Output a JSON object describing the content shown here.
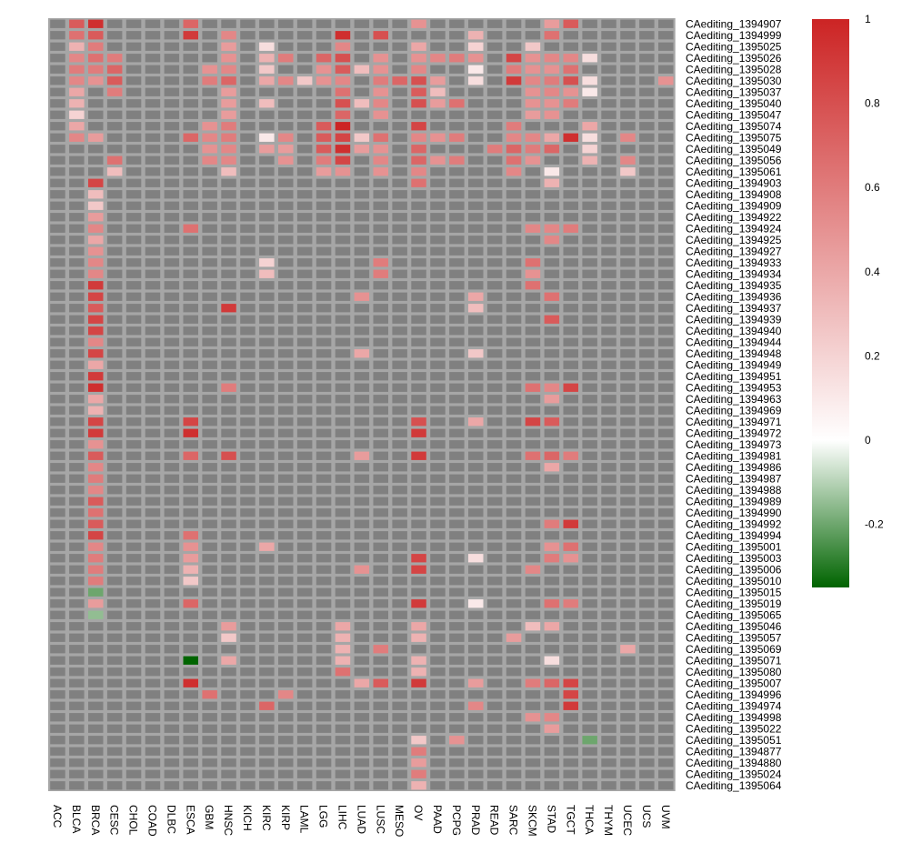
{
  "chart_data": {
    "type": "heatmap",
    "title": "",
    "xlabel": "",
    "ylabel": "",
    "na_color": "#808080",
    "colors": {
      "low": "#006400",
      "mid": "#ffffff",
      "high": "#cc2424",
      "grid": "#a6a6a6"
    },
    "value_range": [
      -0.35,
      1.0
    ],
    "legend_ticks": [
      1,
      0.8,
      0.6,
      0.4,
      0.2,
      0,
      -0.2
    ],
    "columns": [
      "ACC",
      "BLCA",
      "BRCA",
      "CESC",
      "CHOL",
      "COAD",
      "DLBC",
      "ESCA",
      "GBM",
      "HNSC",
      "KICH",
      "KIRC",
      "KIRP",
      "LAML",
      "LGG",
      "LIHC",
      "LUAD",
      "LUSC",
      "MESO",
      "OV",
      "PAAD",
      "PCPG",
      "PRAD",
      "READ",
      "SARC",
      "SKCM",
      "STAD",
      "TGCT",
      "THCA",
      "THYM",
      "UCEC",
      "UCS",
      "UVM"
    ],
    "rows": [
      {
        "name": "CAediting_1394907",
        "values": {
          "BLCA": 0.75,
          "BRCA": 0.95,
          "ESCA": 0.7,
          "OV": 0.5,
          "STAD": 0.45,
          "TGCT": 0.75
        }
      },
      {
        "name": "CAediting_1394999",
        "values": {
          "BLCA": 0.65,
          "BRCA": 0.75,
          "ESCA": 0.9,
          "HNSC": 0.55,
          "LIHC": 0.95,
          "LUSC": 0.8,
          "PRAD": 0.35,
          "STAD": 0.65
        }
      },
      {
        "name": "CAediting_1395025",
        "values": {
          "BLCA": 0.35,
          "BRCA": 0.6,
          "HNSC": 0.45,
          "KIRC": 0.15,
          "LIHC": 0.55,
          "OV": 0.4,
          "PRAD": 0.2,
          "SKCM": 0.25
        }
      },
      {
        "name": "CAediting_1395026",
        "values": {
          "BLCA": 0.55,
          "BRCA": 0.65,
          "CESC": 0.6,
          "HNSC": 0.5,
          "KIRC": 0.35,
          "KIRP": 0.6,
          "LGG": 0.7,
          "LIHC": 0.8,
          "LUSC": 0.5,
          "OV": 0.5,
          "PAAD": 0.55,
          "PCPG": 0.6,
          "PRAD": 0.5,
          "SARC": 0.85,
          "SKCM": 0.5,
          "STAD": 0.55,
          "TGCT": 0.55,
          "THCA": 0.15
        }
      },
      {
        "name": "CAediting_1395028",
        "values": {
          "BLCA": 0.6,
          "BRCA": 0.6,
          "CESC": 0.7,
          "GBM": 0.5,
          "HNSC": 0.55,
          "KIRC": 0.25,
          "LGG": 0.5,
          "LIHC": 0.75,
          "LUAD": 0.3,
          "LUSC": 0.5,
          "OV": 0.55,
          "PRAD": 0.1,
          "SARC": 0.6,
          "SKCM": 0.5,
          "STAD": 0.5,
          "TGCT": 0.65
        }
      },
      {
        "name": "CAediting_1395030",
        "values": {
          "BLCA": 0.55,
          "BRCA": 0.5,
          "CESC": 0.75,
          "GBM": 0.6,
          "HNSC": 0.7,
          "KIRC": 0.4,
          "KIRP": 0.55,
          "LAML": 0.25,
          "LGG": 0.5,
          "LIHC": 0.55,
          "LUSC": 0.6,
          "MESO": 0.7,
          "OV": 0.8,
          "PAAD": 0.45,
          "PRAD": 0.15,
          "SARC": 0.9,
          "SKCM": 0.55,
          "STAD": 0.6,
          "TGCT": 0.8,
          "THCA": 0.15,
          "UVM": 0.5
        }
      },
      {
        "name": "CAediting_1395037",
        "values": {
          "BLCA": 0.4,
          "CESC": 0.6,
          "HNSC": 0.45,
          "LIHC": 0.65,
          "LUSC": 0.5,
          "OV": 0.75,
          "PAAD": 0.3,
          "SKCM": 0.5,
          "STAD": 0.55,
          "TGCT": 0.5,
          "THCA": 0.1
        }
      },
      {
        "name": "CAediting_1395040",
        "values": {
          "BLCA": 0.35,
          "HNSC": 0.45,
          "KIRC": 0.3,
          "LIHC": 0.8,
          "LUAD": 0.3,
          "LUSC": 0.55,
          "OV": 0.8,
          "PAAD": 0.45,
          "PCPG": 0.65,
          "SKCM": 0.5,
          "STAD": 0.5,
          "TGCT": 0.6
        }
      },
      {
        "name": "CAediting_1395047",
        "values": {
          "BLCA": 0.2,
          "HNSC": 0.45,
          "LIHC": 0.7,
          "LUSC": 0.5,
          "SKCM": 0.45,
          "STAD": 0.5
        }
      },
      {
        "name": "CAediting_1395074",
        "values": {
          "BLCA": 0.4,
          "GBM": 0.5,
          "HNSC": 0.6,
          "LGG": 0.75,
          "LIHC": 1.0,
          "OV": 0.85,
          "SARC": 0.6,
          "THCA": 0.4
        }
      },
      {
        "name": "CAediting_1395075",
        "values": {
          "BLCA": 0.55,
          "BRCA": 0.45,
          "ESCA": 0.7,
          "GBM": 0.55,
          "HNSC": 0.6,
          "KIRC": 0.1,
          "KIRP": 0.55,
          "LGG": 0.75,
          "LIHC": 0.85,
          "LUAD": 0.25,
          "LUSC": 0.65,
          "OV": 0.55,
          "PAAD": 0.5,
          "PCPG": 0.6,
          "SARC": 0.55,
          "SKCM": 0.55,
          "STAD": 0.4,
          "TGCT": 0.95,
          "THCA": 0.15,
          "UCEC": 0.55
        }
      },
      {
        "name": "CAediting_1395049",
        "values": {
          "GBM": 0.5,
          "HNSC": 0.55,
          "KIRC": 0.45,
          "KIRP": 0.45,
          "LGG": 0.75,
          "LIHC": 0.95,
          "LUAD": 0.45,
          "LUSC": 0.5,
          "OV": 0.7,
          "READ": 0.6,
          "SARC": 0.7,
          "SKCM": 0.6,
          "STAD": 0.7,
          "THCA": 0.2
        }
      },
      {
        "name": "CAediting_1395056",
        "values": {
          "CESC": 0.65,
          "GBM": 0.55,
          "HNSC": 0.55,
          "KIRP": 0.5,
          "LGG": 0.6,
          "LIHC": 0.85,
          "LUSC": 0.55,
          "OV": 0.7,
          "PAAD": 0.5,
          "PCPG": 0.6,
          "SARC": 0.65,
          "SKCM": 0.5,
          "THCA": 0.35,
          "UCEC": 0.55
        }
      },
      {
        "name": "CAediting_1395061",
        "values": {
          "CESC": 0.3,
          "HNSC": 0.3,
          "LGG": 0.45,
          "LIHC": 0.5,
          "LUSC": 0.5,
          "OV": 0.55,
          "SARC": 0.55,
          "STAD": 0.1,
          "UCEC": 0.25
        }
      },
      {
        "name": "CAediting_1394903",
        "values": {
          "BRCA": 0.85,
          "OV": 0.65,
          "STAD": 0.35
        }
      },
      {
        "name": "CAediting_1394908",
        "values": {
          "BRCA": 0.3
        }
      },
      {
        "name": "CAediting_1394909",
        "values": {
          "BRCA": 0.25
        }
      },
      {
        "name": "CAediting_1394922",
        "values": {
          "BRCA": 0.45
        }
      },
      {
        "name": "CAediting_1394924",
        "values": {
          "BRCA": 0.55,
          "ESCA": 0.65,
          "SKCM": 0.55,
          "STAD": 0.55,
          "TGCT": 0.6
        }
      },
      {
        "name": "CAediting_1394925",
        "values": {
          "BRCA": 0.4,
          "STAD": 0.55
        }
      },
      {
        "name": "CAediting_1394927",
        "values": {
          "BRCA": 0.5
        }
      },
      {
        "name": "CAediting_1394933",
        "values": {
          "BRCA": 0.55,
          "KIRC": 0.2,
          "LUSC": 0.6,
          "SKCM": 0.65
        }
      },
      {
        "name": "CAediting_1394934",
        "values": {
          "BRCA": 0.55,
          "KIRC": 0.3,
          "LUSC": 0.6,
          "SKCM": 0.5
        }
      },
      {
        "name": "CAediting_1394935",
        "values": {
          "BRCA": 0.9,
          "SKCM": 0.65
        }
      },
      {
        "name": "CAediting_1394936",
        "values": {
          "BRCA": 0.85,
          "LUAD": 0.5,
          "PRAD": 0.4,
          "STAD": 0.65
        }
      },
      {
        "name": "CAediting_1394937",
        "values": {
          "BRCA": 0.75,
          "HNSC": 0.9,
          "PRAD": 0.3
        }
      },
      {
        "name": "CAediting_1394939",
        "values": {
          "BRCA": 0.85,
          "STAD": 0.75
        }
      },
      {
        "name": "CAediting_1394940",
        "values": {
          "BRCA": 0.85
        }
      },
      {
        "name": "CAediting_1394944",
        "values": {
          "BRCA": 0.55
        }
      },
      {
        "name": "CAediting_1394948",
        "values": {
          "BRCA": 0.85,
          "LUAD": 0.4,
          "PRAD": 0.25
        }
      },
      {
        "name": "CAediting_1394949",
        "values": {
          "BRCA": 0.4
        }
      },
      {
        "name": "CAediting_1394951",
        "values": {
          "BRCA": 0.9
        }
      },
      {
        "name": "CAediting_1394953",
        "values": {
          "BRCA": 0.95,
          "HNSC": 0.6,
          "SKCM": 0.65,
          "STAD": 0.55,
          "TGCT": 0.85
        }
      },
      {
        "name": "CAediting_1394963",
        "values": {
          "BRCA": 0.4,
          "STAD": 0.45
        }
      },
      {
        "name": "CAediting_1394969",
        "values": {
          "BRCA": 0.35
        }
      },
      {
        "name": "CAediting_1394971",
        "values": {
          "BRCA": 0.85,
          "ESCA": 0.85,
          "OV": 0.8,
          "PRAD": 0.4,
          "SKCM": 0.85,
          "STAD": 0.75
        }
      },
      {
        "name": "CAediting_1394972",
        "values": {
          "BRCA": 0.9,
          "ESCA": 0.95,
          "OV": 0.9
        }
      },
      {
        "name": "CAediting_1394973",
        "values": {
          "BRCA": 0.5
        }
      },
      {
        "name": "CAediting_1394981",
        "values": {
          "BRCA": 0.75,
          "ESCA": 0.7,
          "HNSC": 0.8,
          "LUAD": 0.45,
          "OV": 0.9,
          "SKCM": 0.65,
          "STAD": 0.7,
          "TGCT": 0.6
        }
      },
      {
        "name": "CAediting_1394986",
        "values": {
          "BRCA": 0.55,
          "STAD": 0.4
        }
      },
      {
        "name": "CAediting_1394987",
        "values": {
          "BRCA": 0.6
        }
      },
      {
        "name": "CAediting_1394988",
        "values": {
          "BRCA": 0.55
        }
      },
      {
        "name": "CAediting_1394989",
        "values": {
          "BRCA": 0.75
        }
      },
      {
        "name": "CAediting_1394990",
        "values": {
          "BRCA": 0.65
        }
      },
      {
        "name": "CAediting_1394992",
        "values": {
          "BRCA": 0.75,
          "STAD": 0.6,
          "TGCT": 0.9
        }
      },
      {
        "name": "CAediting_1394994",
        "values": {
          "BRCA": 0.85,
          "ESCA": 0.65
        }
      },
      {
        "name": "CAediting_1395001",
        "values": {
          "BRCA": 0.55,
          "ESCA": 0.5,
          "KIRC": 0.4,
          "STAD": 0.5,
          "TGCT": 0.65
        }
      },
      {
        "name": "CAediting_1395003",
        "values": {
          "BRCA": 0.6,
          "ESCA": 0.45,
          "OV": 0.85,
          "PRAD": 0.15,
          "STAD": 0.6,
          "TGCT": 0.5
        }
      },
      {
        "name": "CAediting_1395006",
        "values": {
          "BRCA": 0.6,
          "ESCA": 0.35,
          "LUAD": 0.5,
          "OV": 0.85,
          "SKCM": 0.55
        }
      },
      {
        "name": "CAediting_1395010",
        "values": {
          "BRCA": 0.6,
          "ESCA": 0.25
        }
      },
      {
        "name": "CAediting_1395015",
        "values": {
          "BRCA": -0.2
        }
      },
      {
        "name": "CAediting_1395019",
        "values": {
          "BRCA": 0.45,
          "ESCA": 0.7,
          "OV": 0.9,
          "PRAD": 0.1,
          "STAD": 0.65,
          "TGCT": 0.6
        }
      },
      {
        "name": "CAediting_1395065",
        "values": {
          "BRCA": -0.15
        }
      },
      {
        "name": "CAediting_1395046",
        "values": {
          "HNSC": 0.45,
          "LIHC": 0.4,
          "OV": 0.4,
          "SKCM": 0.3,
          "STAD": 0.4
        }
      },
      {
        "name": "CAediting_1395057",
        "values": {
          "HNSC": 0.25,
          "LIHC": 0.35,
          "OV": 0.35,
          "SARC": 0.45
        }
      },
      {
        "name": "CAediting_1395069",
        "values": {
          "LIHC": 0.35,
          "LUSC": 0.6,
          "UCEC": 0.4
        }
      },
      {
        "name": "CAediting_1395071",
        "values": {
          "ESCA": -0.35,
          "HNSC": 0.4,
          "LIHC": 0.35,
          "OV": 0.35,
          "STAD": 0.15
        }
      },
      {
        "name": "CAediting_1395080",
        "values": {
          "LIHC": 0.65,
          "OV": 0.35
        }
      },
      {
        "name": "CAediting_1395007",
        "values": {
          "ESCA": 0.95,
          "LUAD": 0.4,
          "LUSC": 0.75,
          "OV": 0.9,
          "PRAD": 0.45,
          "SKCM": 0.6,
          "STAD": 0.7,
          "TGCT": 0.85
        }
      },
      {
        "name": "CAediting_1394996",
        "values": {
          "GBM": 0.65,
          "KIRP": 0.55,
          "TGCT": 0.85
        }
      },
      {
        "name": "CAediting_1394974",
        "values": {
          "KIRC": 0.7,
          "PRAD": 0.55,
          "TGCT": 0.9
        }
      },
      {
        "name": "CAediting_1394998",
        "values": {
          "SKCM": 0.5,
          "STAD": 0.55
        }
      },
      {
        "name": "CAediting_1395022",
        "values": {
          "STAD": 0.45
        }
      },
      {
        "name": "CAediting_1395051",
        "values": {
          "OV": 0.25,
          "PCPG": 0.5,
          "THCA": -0.2
        }
      },
      {
        "name": "CAediting_1394877",
        "values": {
          "OV": 0.6
        }
      },
      {
        "name": "CAediting_1394880",
        "values": {
          "OV": 0.45
        }
      },
      {
        "name": "CAediting_1395024",
        "values": {
          "OV": 0.6
        }
      },
      {
        "name": "CAediting_1395064",
        "values": {
          "OV": 0.35
        }
      }
    ]
  }
}
